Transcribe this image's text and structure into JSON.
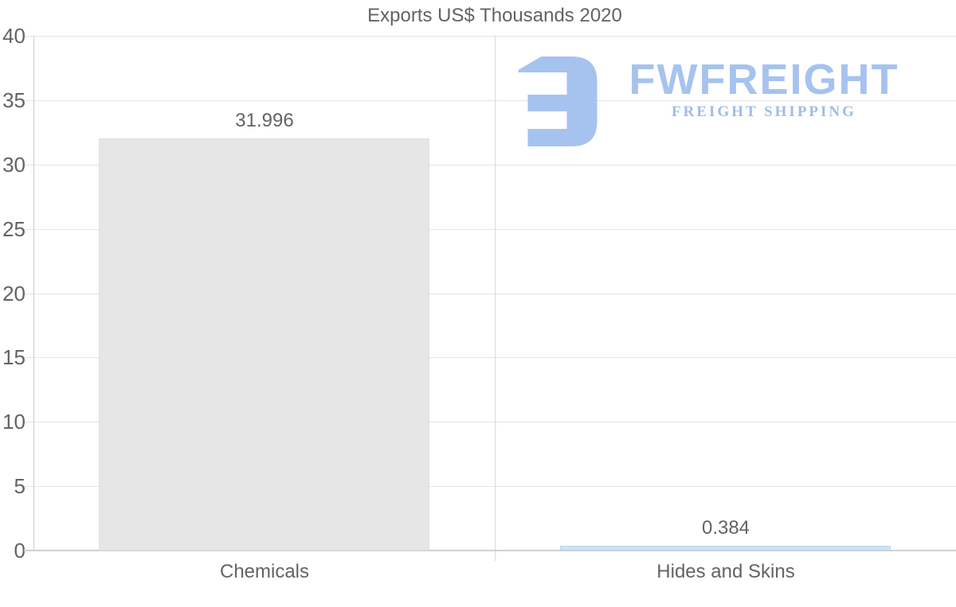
{
  "chart_data": {
    "type": "bar",
    "title": "Exports US$ Thousands 2020",
    "categories": [
      "Chemicals",
      "Hides and Skins"
    ],
    "values": [
      31.996,
      0.384
    ],
    "value_labels": [
      "31.996",
      "0.384"
    ],
    "xlabel": "",
    "ylabel": "",
    "ylim": [
      0,
      40
    ],
    "yticks": [
      0,
      5,
      10,
      15,
      20,
      25,
      30,
      35,
      40
    ],
    "grid": true,
    "legend_position": "none",
    "bar_colors": [
      "#e6e6e6",
      "#cfe2f4"
    ],
    "bar_border_colors": [
      "#e0e0e0",
      "#bdd6ef"
    ],
    "text_color": "#636363",
    "grid_color": "#e4e4e4",
    "axis_color": "#cccccc"
  },
  "watermark": {
    "brand": "FWFREIGHT",
    "tagline": "FREIGHT SHIPPING",
    "color": "#a6c3ef",
    "icon": "fwfreight-logo-icon"
  }
}
